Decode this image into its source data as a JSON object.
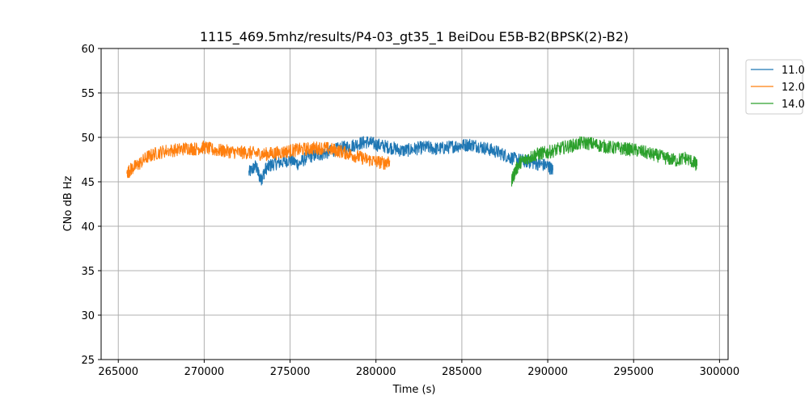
{
  "chart_data": {
    "type": "line",
    "title": "1115_469.5mhz/results/P4-03_gt35_1 BeiDou E5B-B2(BPSK(2)-B2)",
    "xlabel": "Time (s)",
    "ylabel": "CNo dB Hz",
    "xlim": [
      264000,
      300500
    ],
    "ylim": [
      25,
      60
    ],
    "xticks": [
      265000,
      270000,
      275000,
      280000,
      285000,
      290000,
      295000,
      300000
    ],
    "yticks": [
      25,
      30,
      35,
      40,
      45,
      50,
      55,
      60
    ],
    "grid": true,
    "legend_position": "outside-top-right",
    "series": [
      {
        "name": "11.0",
        "color": "#1f77b4",
        "x": [
          272600,
          273000,
          273300,
          273600,
          274000,
          274500,
          275000,
          275500,
          276000,
          276500,
          277000,
          277500,
          278000,
          278500,
          279000,
          279500,
          280000,
          280500,
          281000,
          281500,
          282000,
          282500,
          283000,
          283500,
          284000,
          284500,
          285000,
          285500,
          286000,
          286500,
          287000,
          287500,
          288000,
          288500,
          289000,
          289500,
          290000,
          290300
        ],
        "values": [
          46.0,
          46.8,
          45.2,
          46.5,
          47.0,
          47.2,
          47.5,
          47.0,
          47.8,
          48.0,
          48.2,
          48.5,
          48.8,
          49.0,
          49.3,
          49.5,
          49.2,
          49.0,
          48.8,
          48.5,
          48.6,
          48.8,
          48.9,
          48.7,
          48.8,
          49.0,
          49.1,
          49.2,
          49.0,
          48.7,
          48.4,
          48.0,
          47.6,
          47.4,
          47.2,
          47.0,
          46.8,
          46.3
        ]
      },
      {
        "name": "12.0",
        "color": "#ff7f0e",
        "x": [
          265500,
          265800,
          266200,
          266700,
          267200,
          267800,
          268500,
          269000,
          269500,
          270000,
          270500,
          271000,
          271500,
          272000,
          272500,
          273000,
          273500,
          274000,
          274500,
          275000,
          275500,
          276000,
          276500,
          277000,
          277500,
          278000,
          278500,
          279000,
          279500,
          280000,
          280500,
          280800
        ],
        "values": [
          46.0,
          46.5,
          47.0,
          47.8,
          48.2,
          48.5,
          48.6,
          48.8,
          48.7,
          48.9,
          48.6,
          48.5,
          48.4,
          48.3,
          48.3,
          48.2,
          48.1,
          48.2,
          48.3,
          48.5,
          48.6,
          48.7,
          48.8,
          48.8,
          48.6,
          48.4,
          48.1,
          47.8,
          47.5,
          47.3,
          47.1,
          47.4
        ]
      },
      {
        "name": "14.0",
        "color": "#2ca02c",
        "x": [
          287900,
          288100,
          288400,
          288800,
          289200,
          289600,
          290000,
          290500,
          291000,
          291500,
          292000,
          292500,
          293000,
          293500,
          294000,
          294500,
          295000,
          295500,
          296000,
          296500,
          297000,
          297500,
          298000,
          298500,
          298700
        ],
        "values": [
          45.0,
          46.2,
          47.2,
          47.6,
          48.0,
          48.2,
          48.3,
          48.6,
          48.9,
          49.1,
          49.4,
          49.3,
          49.1,
          48.9,
          48.8,
          48.7,
          48.6,
          48.4,
          48.1,
          47.9,
          47.6,
          47.4,
          47.7,
          47.2,
          46.8
        ]
      }
    ]
  }
}
